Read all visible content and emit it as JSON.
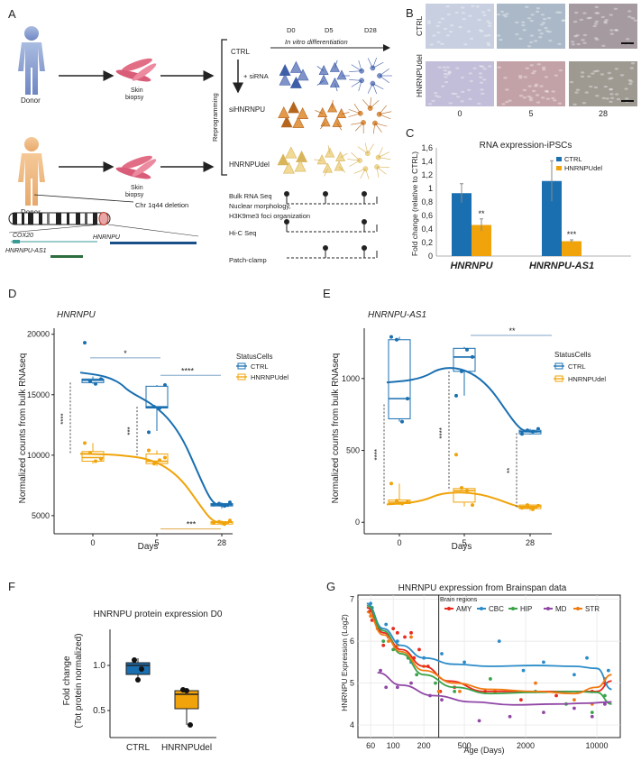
{
  "panel_labels": {
    "A": "A",
    "B": "B",
    "C": "C",
    "D": "D",
    "E": "E",
    "F": "F",
    "G": "G"
  },
  "panel_a": {
    "donor_top": "Donor",
    "donor_bottom": "Donor",
    "skin_biopsy_top": "Skin\nbiopsy",
    "skin_biopsy_bottom": "Skin\nbiopsy",
    "reprogramming": "Reprogramming",
    "ctrl": "CTRL",
    "sirna": "+ siRNA",
    "sihnrnpu": "siHNRNPU",
    "hnrnpudel": "HNRNPUdel",
    "day_labels": [
      "D0",
      "D5",
      "D28"
    ],
    "in_vitro": "In vitro differentiation",
    "chr_deletion": "Chr 1q44 deletion",
    "genes": [
      "COX20",
      "HNRNPU-AS1",
      "HNRNPU"
    ],
    "assays": [
      "Bulk RNA Seq",
      "Nuclear morphology,",
      "H3K9me3 foci organization",
      "Hi-C Seq",
      "Patch-clamp"
    ]
  },
  "panel_b": {
    "row_labels": [
      "CTRL",
      "HNRNPUdel"
    ],
    "col_labels": [
      "0",
      "5",
      "28"
    ],
    "colors": {
      "ctrl": [
        "#c7cfe0",
        "#aab8c7",
        "#a49aa0"
      ],
      "del": [
        "#c2bdd8",
        "#c3a2a7",
        "#9e9a92"
      ]
    }
  },
  "chart_data": [
    {
      "id": "C",
      "type": "bar",
      "title": "RNA expression-iPSCs",
      "ylabel": "Fold change (relative to CTRL)",
      "ylim": [
        0,
        1.6
      ],
      "yticks": [
        "0",
        "0,2",
        "0,4",
        "0,6",
        "0,8",
        "1",
        "1,2",
        "1,4",
        "1,6"
      ],
      "categories": [
        "HNRNPU",
        "HNRNPU-AS1"
      ],
      "series": [
        {
          "name": "CTRL",
          "color": "#1a6fb0",
          "values": [
            0.93,
            1.11
          ],
          "err": [
            0.14,
            0.3
          ]
        },
        {
          "name": "HNRNPUdel",
          "color": "#f0a30a",
          "values": [
            0.46,
            0.22
          ],
          "err": [
            0.09,
            0.02
          ]
        }
      ],
      "annotations": [
        "**",
        "***"
      ]
    },
    {
      "id": "D",
      "type": "box",
      "title": "HNRNPU",
      "ylabel": "Normalized counts from bulk RNAseq",
      "xlabel": "Days",
      "categories": [
        "0",
        "5",
        "28"
      ],
      "yticks": [
        5000,
        10000,
        15000,
        20000
      ],
      "yticklabels": [
        "5000",
        "10000",
        "15000",
        "20000"
      ],
      "ylim": [
        3500,
        20500
      ],
      "legend_title": "StatusCells",
      "series": [
        {
          "name": "CTRL",
          "color": "#1a6fb0",
          "boxes": [
            [
              15900,
              16000,
              16200,
              16300,
              16500
            ],
            [
              12000,
              13900,
              14000,
              15700,
              15800
            ],
            [
              5600,
              5800,
              5900,
              6000,
              6100
            ]
          ],
          "points": [
            [
              19300,
              16100,
              15900,
              16300
            ],
            [
              11900,
              14000,
              13900,
              15800
            ],
            [
              5900,
              6000,
              5800,
              6100
            ]
          ],
          "smooth": [
            16700,
            14500,
            5800
          ]
        },
        {
          "name": "HNRNPUdel",
          "color": "#f0a30a",
          "boxes": [
            [
              9300,
              9500,
              9800,
              10300,
              11000
            ],
            [
              9100,
              9300,
              9500,
              10100,
              10400
            ],
            [
              4200,
              4300,
              4450,
              4500,
              4600
            ]
          ],
          "points": [
            [
              11000,
              10200,
              9500,
              9700
            ],
            [
              10400,
              9300,
              9600,
              9800
            ],
            [
              4400,
              4500,
              4300,
              4600
            ]
          ],
          "smooth": [
            10100,
            9800,
            4400
          ]
        }
      ],
      "significance": [
        "*",
        "****",
        "****",
        "***",
        "***"
      ]
    },
    {
      "id": "E",
      "type": "box",
      "title": "HNRNPU-AS1",
      "ylabel": "Normalized counts from bulk RNAseq",
      "xlabel": "Days",
      "categories": [
        "0",
        "5",
        "28"
      ],
      "yticks": [
        0,
        500,
        1000
      ],
      "yticklabels": [
        "0",
        "500",
        "1000"
      ],
      "ylim": [
        -80,
        1350
      ],
      "legend_title": "StatusCells",
      "series": [
        {
          "name": "CTRL",
          "color": "#1a6fb0",
          "boxes": [
            [
              700,
              720,
              860,
              1270,
              1290
            ],
            [
              880,
              1050,
              1150,
              1210,
              1220
            ],
            [
              610,
              615,
              630,
              640,
              650
            ]
          ],
          "points": [
            [
              1290,
              1270,
              700,
              860
            ],
            [
              880,
              1050,
              1200,
              1150
            ],
            [
              615,
              640,
              630,
              650
            ]
          ],
          "smooth": [
            980,
            1100,
            630
          ]
        },
        {
          "name": "HNRNPUdel",
          "color": "#f0a30a",
          "boxes": [
            [
              120,
              130,
              140,
              155,
              270
            ],
            [
              110,
              140,
              220,
              235,
              240
            ],
            [
              80,
              95,
              110,
              120,
              125
            ]
          ],
          "points": [
            [
              270,
              150,
              130,
              140
            ],
            [
              470,
              240,
              220,
              120
            ],
            [
              100,
              120,
              90,
              115
            ]
          ],
          "smooth": [
            130,
            220,
            100
          ]
        }
      ],
      "significance": [
        "**",
        "****",
        "****",
        "**"
      ]
    },
    {
      "id": "F",
      "type": "box",
      "title": "HNRNPU protein expression D0",
      "ylabel": "Fold change",
      "ylabel2": "(Tot protein normalized)",
      "categories": [
        "CTRL",
        "HNRNPUdel"
      ],
      "yticks": [
        0.5,
        1.0
      ],
      "yticklabels": [
        "0.5",
        "1.0"
      ],
      "ylim": [
        0.2,
        1.4
      ],
      "series": [
        {
          "name": "CTRL",
          "color": "#1a6fb0",
          "box": [
            0.84,
            0.9,
            1.0,
            1.03,
            1.08
          ],
          "points": [
            1.06,
            0.84,
            0.96
          ]
        },
        {
          "name": "HNRNPUdel",
          "color": "#f0a30a",
          "box": [
            0.34,
            0.52,
            0.68,
            0.72,
            0.73
          ],
          "points": [
            0.73,
            0.72,
            0.34
          ]
        }
      ]
    },
    {
      "id": "G",
      "type": "scatter",
      "title": "HNRNPU expression from Brainspan data",
      "ylabel": "HNRNPU Expression (Log2)",
      "xlabel": "Age (Days)",
      "xscale": "log",
      "xlim": [
        45,
        17000
      ],
      "xticks": [
        60,
        100,
        200,
        500,
        2000,
        10000
      ],
      "xticklabels": [
        "60",
        "100",
        "200",
        "500",
        "2000",
        "10000"
      ],
      "ylim": [
        3.7,
        7.1
      ],
      "yticks": [
        4,
        5,
        6,
        7
      ],
      "yticklabels": [
        "4",
        "5",
        "6",
        "7"
      ],
      "vline_x": 280,
      "legend_title": "Brain regions",
      "series": [
        {
          "name": "AMY",
          "color": "#e8291c",
          "points": [
            [
              58,
              6.7
            ],
            [
              62,
              6.5
            ],
            [
              75,
              6.3
            ],
            [
              80,
              5.9
            ],
            [
              90,
              6.1
            ],
            [
              100,
              6.3
            ],
            [
              110,
              6.2
            ],
            [
              130,
              6.1
            ],
            [
              150,
              6.2
            ],
            [
              160,
              5.6
            ],
            [
              180,
              5.8
            ],
            [
              220,
              5.4
            ],
            [
              290,
              4.8
            ],
            [
              400,
              4.9
            ],
            [
              800,
              4.8
            ],
            [
              1800,
              4.6
            ],
            [
              4000,
              4.7
            ],
            [
              9000,
              4.8
            ],
            [
              12000,
              5.0
            ]
          ],
          "curve": [
            [
              55,
              6.8
            ],
            [
              80,
              6.2
            ],
            [
              120,
              5.8
            ],
            [
              200,
              5.4
            ],
            [
              350,
              5.05
            ],
            [
              800,
              4.8
            ],
            [
              2000,
              4.8
            ],
            [
              5000,
              4.8
            ],
            [
              10000,
              4.8
            ],
            [
              14000,
              5.05
            ]
          ]
        },
        {
          "name": "CBC",
          "color": "#2b8cc9",
          "points": [
            [
              60,
              6.9
            ],
            [
              85,
              6.4
            ],
            [
              110,
              6.0
            ],
            [
              150,
              5.5
            ],
            [
              200,
              5.6
            ],
            [
              300,
              5.7
            ],
            [
              500,
              5.5
            ],
            [
              1100,
              6.0
            ],
            [
              1900,
              5.3
            ],
            [
              3000,
              5.5
            ],
            [
              6000,
              5.2
            ],
            [
              8000,
              5.6
            ],
            [
              13000,
              5.3
            ]
          ],
          "curve": [
            [
              55,
              6.9
            ],
            [
              80,
              6.3
            ],
            [
              120,
              5.9
            ],
            [
              200,
              5.6
            ],
            [
              400,
              5.45
            ],
            [
              900,
              5.4
            ],
            [
              2500,
              5.42
            ],
            [
              6000,
              5.4
            ],
            [
              10000,
              5.35
            ],
            [
              14000,
              4.85
            ]
          ]
        },
        {
          "name": "HIP",
          "color": "#3aa34a",
          "points": [
            [
              62,
              6.8
            ],
            [
              80,
              6.0
            ],
            [
              100,
              5.8
            ],
            [
              140,
              5.6
            ],
            [
              170,
              5.2
            ],
            [
              260,
              5.0
            ],
            [
              400,
              4.8
            ],
            [
              900,
              5.1
            ],
            [
              2500,
              4.8
            ],
            [
              5000,
              4.5
            ],
            [
              9000,
              4.3
            ],
            [
              12000,
              4.7
            ]
          ],
          "curve": [
            [
              55,
              6.85
            ],
            [
              80,
              6.25
            ],
            [
              120,
              5.7
            ],
            [
              200,
              5.2
            ],
            [
              400,
              4.9
            ],
            [
              900,
              4.75
            ],
            [
              2500,
              4.78
            ],
            [
              6000,
              4.8
            ],
            [
              10000,
              4.78
            ],
            [
              14000,
              4.5
            ]
          ]
        },
        {
          "name": "MD",
          "color": "#9047a6",
          "points": [
            [
              75,
              5.3
            ],
            [
              85,
              4.9
            ],
            [
              110,
              4.9
            ],
            [
              150,
              5.0
            ],
            [
              230,
              4.7
            ],
            [
              300,
              4.6
            ],
            [
              700,
              4.1
            ],
            [
              1400,
              4.2
            ],
            [
              3000,
              4.3
            ],
            [
              6000,
              4.4
            ],
            [
              9000,
              4.2
            ],
            [
              12000,
              4.5
            ]
          ],
          "curve": [
            [
              70,
              5.25
            ],
            [
              120,
              4.95
            ],
            [
              250,
              4.7
            ],
            [
              600,
              4.55
            ],
            [
              1500,
              4.48
            ],
            [
              4000,
              4.5
            ],
            [
              8000,
              4.52
            ],
            [
              14000,
              4.55
            ]
          ]
        },
        {
          "name": "STR",
          "color": "#f07a12",
          "points": [
            [
              60,
              6.6
            ],
            [
              70,
              6.3
            ],
            [
              90,
              6.0
            ],
            [
              110,
              5.9
            ],
            [
              150,
              6.1
            ],
            [
              200,
              5.4
            ],
            [
              280,
              4.8
            ],
            [
              450,
              4.8
            ],
            [
              1000,
              4.8
            ],
            [
              2500,
              5.0
            ],
            [
              6000,
              4.6
            ],
            [
              9000,
              4.5
            ],
            [
              12000,
              5.1
            ]
          ],
          "curve": [
            [
              55,
              6.7
            ],
            [
              80,
              6.15
            ],
            [
              120,
              5.75
            ],
            [
              200,
              5.3
            ],
            [
              400,
              5.0
            ],
            [
              900,
              4.85
            ],
            [
              2500,
              4.8
            ],
            [
              6000,
              4.75
            ],
            [
              10000,
              4.9
            ],
            [
              14000,
              5.2
            ]
          ]
        }
      ]
    }
  ]
}
